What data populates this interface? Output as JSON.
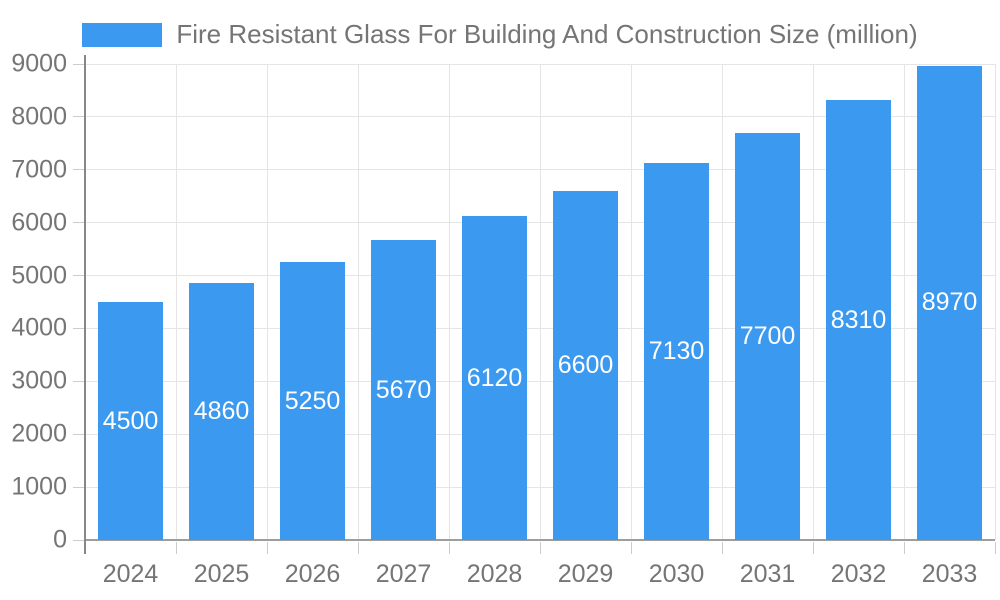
{
  "chart_data": {
    "type": "bar",
    "title": "Fire Resistant Glass For Building And Construction Size (million)",
    "legend": {
      "label": "Fire Resistant Glass For Building And Construction Size (million)",
      "position": "top-center"
    },
    "categories": [
      "2024",
      "2025",
      "2026",
      "2027",
      "2028",
      "2029",
      "2030",
      "2031",
      "2032",
      "2033"
    ],
    "values": [
      4500,
      4860,
      5250,
      5670,
      6120,
      6600,
      7130,
      7700,
      8310,
      8970
    ],
    "xlabel": "",
    "ylabel": "",
    "ylim": [
      0,
      9000
    ],
    "y_ticks": [
      0,
      1000,
      2000,
      3000,
      4000,
      5000,
      6000,
      7000,
      8000,
      9000
    ],
    "grid": true,
    "bar_value_labels_visible": true
  },
  "colors": {
    "bar": "#3B99F0",
    "bar_label": "#FFFFFF",
    "grid": "#E5E5E5",
    "tick": "#CCCCCC",
    "zero_line": "#9E9E9E",
    "axis_line": "#878787",
    "text": "#757575",
    "background": "#FFFFFF"
  }
}
